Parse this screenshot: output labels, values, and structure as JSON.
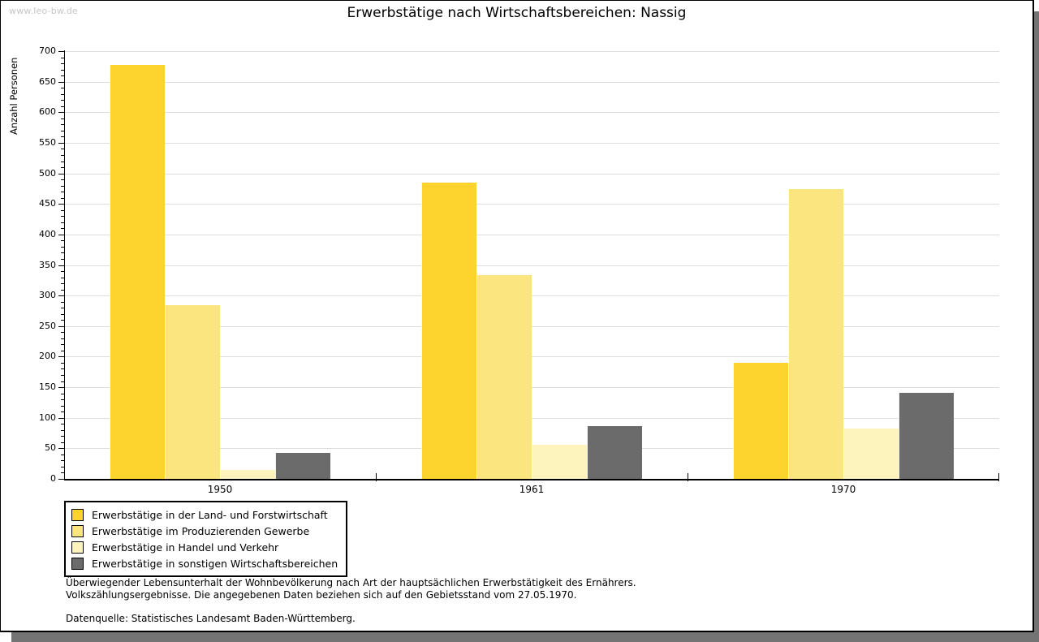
{
  "watermark": "www.leo-bw.de",
  "title": "Erwerbstätige nach Wirtschaftsbereichen: Nassig",
  "chart_data": {
    "type": "bar",
    "title": "Erwerbstätige nach Wirtschaftsbereichen: Nassig",
    "xlabel": "",
    "ylabel": "Anzahl Personen",
    "ylim": [
      0,
      700
    ],
    "ytick_step": 50,
    "ytick_minor_step": 10,
    "grid": true,
    "legend_position": "bottom-left",
    "categories": [
      "1950",
      "1961",
      "1970"
    ],
    "series": [
      {
        "name": "Erwerbstätige in der Land- und Forstwirtschaft",
        "color": "#FCD42D",
        "values": [
          678,
          485,
          190
        ]
      },
      {
        "name": "Erwerbstätige im Produzierenden Gewerbe",
        "color": "#FAE57E",
        "values": [
          284,
          333,
          474
        ]
      },
      {
        "name": "Erwerbstätige in Handel und Verkehr",
        "color": "#FCF3BD",
        "values": [
          14,
          56,
          83
        ]
      },
      {
        "name": "Erwerbstätige in sonstigen Wirtschaftsbereichen",
        "color": "#6B6B6B",
        "values": [
          42,
          86,
          141
        ]
      }
    ]
  },
  "footnotes": {
    "line1": "Überwiegender Lebensunterhalt der Wohnbevölkerung nach Art der hauptsächlichen Erwerbstätigkeit des Ernährers.",
    "line2": "Volkszählungsergebnisse. Die angegebenen Daten beziehen sich auf den Gebietsstand vom 27.05.1970.",
    "source": "Datenquelle: Statistisches Landesamt Baden-Württemberg."
  },
  "colors": {
    "gridline": "#DDDDDD",
    "axis": "#000000",
    "watermark": "#C6C6C6",
    "frame_shadow": "#747474",
    "background": "#FFFFFF"
  }
}
